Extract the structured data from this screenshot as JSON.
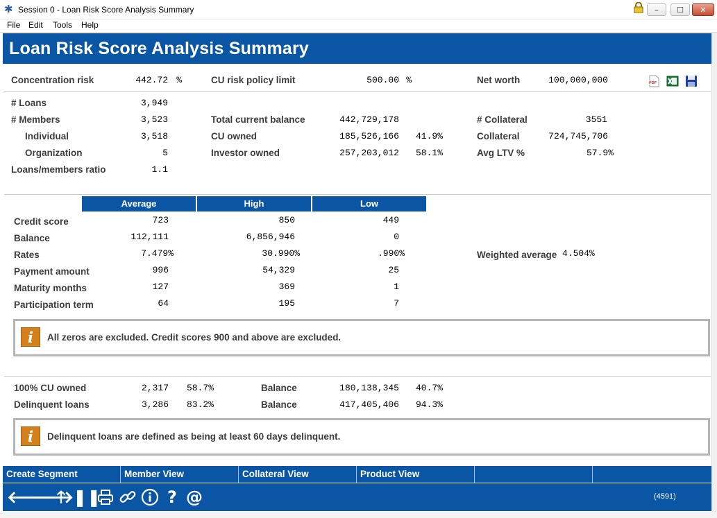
{
  "window": {
    "title": "Session 0  -  Loan Risk Score Analysis Summary",
    "min": "–",
    "max": "☐",
    "close": "✕"
  },
  "menu": [
    "File",
    "Edit",
    "Tools",
    "Help"
  ],
  "header": {
    "title": "Loan Risk Score Analysis Summary"
  },
  "summary": {
    "concentration_risk_label": "Concentration risk",
    "concentration_risk": "442.72",
    "concentration_pct": "%",
    "cu_risk_policy_limit_label": "CU risk policy limit",
    "cu_risk_policy_limit": "500.00",
    "cu_risk_pct": "%",
    "net_worth_label": "Net worth",
    "net_worth": "100,000,000"
  },
  "counts": {
    "loans_label": "# Loans",
    "loans": "3,949",
    "members_label": "# Members",
    "members": "3,523",
    "individual_label": "Individual",
    "individual": "3,518",
    "organization_label": "Organization",
    "organization": "5",
    "ratio_label": "Loans/members ratio",
    "ratio": "1.1",
    "total_balance_label": "Total current balance",
    "total_balance": "442,729,178",
    "cu_owned_label": "CU owned",
    "cu_owned": "185,526,166",
    "cu_owned_pct": "41.9%",
    "investor_owned_label": "Investor owned",
    "investor_owned": "257,203,012",
    "investor_owned_pct": "58.1%",
    "collateral_count_label": "# Collateral",
    "collateral_count": "3551",
    "collateral_label": "Collateral",
    "collateral": "724,745,706",
    "avg_ltv_label": "Avg LTV %",
    "avg_ltv": "57.9%"
  },
  "stats": {
    "headers": [
      "Average",
      "High",
      "Low"
    ],
    "rows": [
      {
        "label": "Credit score",
        "avg": "723",
        "high": "850",
        "low": "449"
      },
      {
        "label": "Balance",
        "avg": "112,111",
        "high": "6,856,946",
        "low": "0"
      },
      {
        "label": "Rates",
        "avg": "7.479%",
        "high": "30.990%",
        "low": ".990%"
      },
      {
        "label": "Payment amount",
        "avg": "996",
        "high": "54,329",
        "low": "25"
      },
      {
        "label": "Maturity months",
        "avg": "127",
        "high": "369",
        "low": "1"
      },
      {
        "label": "Participation term",
        "avg": "64",
        "high": "195",
        "low": "7"
      }
    ],
    "weighted_average_label": "Weighted average",
    "weighted_average": "4.504%"
  },
  "messages": {
    "zeros": "All zeros are excluded. Credit scores 900 and above are excluded.",
    "delinquent": "Delinquent loans are defined as being at least 60 days delinquent."
  },
  "ownership": {
    "cu_owned_100_label": "100% CU owned",
    "cu_owned_100": "2,317",
    "cu_owned_100_pct": "58.7%",
    "balance_label": "Balance",
    "cu_owned_100_balance": "180,138,345",
    "cu_owned_100_balance_pct": "40.7%",
    "delinquent_label": "Delinquent loans",
    "delinquent": "3,286",
    "delinquent_pct": "83.2%",
    "delinquent_balance": "417,405,406",
    "delinquent_balance_pct": "94.3%"
  },
  "footer_tabs": [
    "Create Segment",
    "Member View",
    "Collateral View",
    "Product View"
  ],
  "screen_id": "(4591)"
}
